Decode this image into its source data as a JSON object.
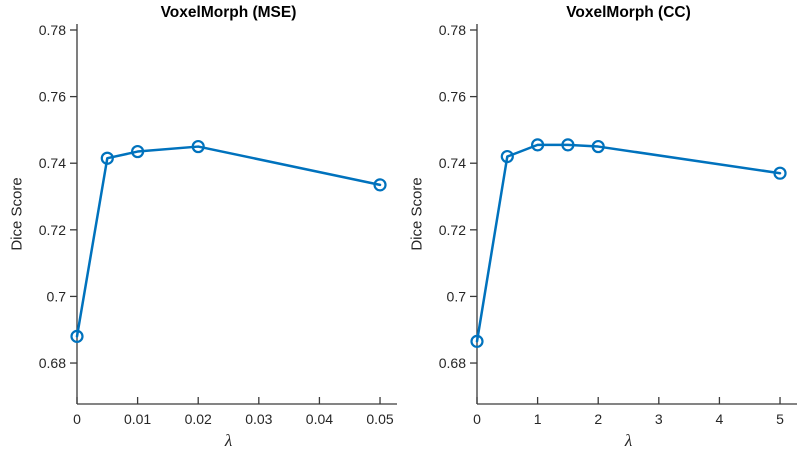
{
  "figure": {
    "background_color": "#ffffff",
    "line_color": "#0072BD",
    "axis_color": "#3a3a3a",
    "tick_label_color": "#262626"
  },
  "chart_data": [
    {
      "type": "line",
      "title": "VoxelMorph (MSE)",
      "xlabel": "λ",
      "ylabel": "Dice Score",
      "x": [
        0,
        0.005,
        0.01,
        0.02,
        0.05
      ],
      "y": [
        0.688,
        0.7415,
        0.7435,
        0.745,
        0.7335
      ],
      "xlim": [
        0,
        0.0528
      ],
      "ylim": [
        0.6677,
        0.7818
      ],
      "xticks": [
        0,
        0.01,
        0.02,
        0.03,
        0.04,
        0.05
      ],
      "xtick_labels": [
        "0",
        "0.01",
        "0.02",
        "0.03",
        "0.04",
        "0.05"
      ],
      "yticks": [
        0.68,
        0.7,
        0.72,
        0.74,
        0.76,
        0.78
      ],
      "ytick_labels": [
        "0.68",
        "0.7",
        "0.72",
        "0.74",
        "0.76",
        "0.78"
      ],
      "marker": "open-circle",
      "grid": false,
      "legend": null
    },
    {
      "type": "line",
      "title": "VoxelMorph (CC)",
      "xlabel": "λ",
      "ylabel": "Dice Score",
      "x": [
        0,
        0.5,
        1,
        1.5,
        2,
        5
      ],
      "y": [
        0.6865,
        0.742,
        0.7455,
        0.7455,
        0.745,
        0.737
      ],
      "xlim": [
        0,
        5.28
      ],
      "ylim": [
        0.6677,
        0.7818
      ],
      "xticks": [
        0,
        1,
        2,
        3,
        4,
        5
      ],
      "xtick_labels": [
        "0",
        "1",
        "2",
        "3",
        "4",
        "5"
      ],
      "yticks": [
        0.68,
        0.7,
        0.72,
        0.74,
        0.76,
        0.78
      ],
      "ytick_labels": [
        "0.68",
        "0.7",
        "0.72",
        "0.74",
        "0.76",
        "0.78"
      ],
      "marker": "open-circle",
      "grid": false,
      "legend": null
    }
  ]
}
